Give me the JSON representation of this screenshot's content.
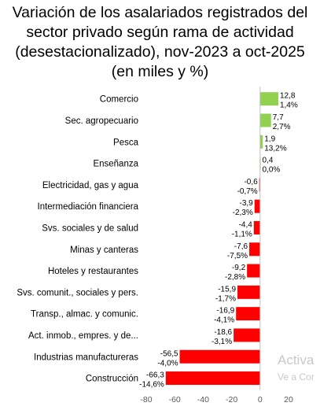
{
  "chart_data": {
    "type": "bar",
    "orientation": "horizontal",
    "title": "Variación de los asalariados registrados del sector privado según rama de actividad (desestacionalizado), nov-2023 a oct-2025 (en miles y %)",
    "title_lines": [
      "Variación de los asalariados registrados del",
      "sector privado según rama de actividad",
      "(desestacionalizado), nov-2023 a oct-2025",
      "(en miles y %)"
    ],
    "categories": [
      "Comercio",
      "Sec. agropecuario",
      "Pesca",
      "Enseñanza",
      "Electricidad, gas y agua",
      "Intermediación financiera",
      "Svs. sociales y de salud",
      "Minas y canteras",
      "Hoteles y restaurantes",
      "Svs. comunit., sociales y pers.",
      "Transp., almac. y comunic.",
      "Act. inmob., empres. y de...",
      "Industrias manufactureras",
      "Construcción"
    ],
    "values": [
      12.8,
      7.7,
      1.9,
      0.4,
      -0.6,
      -3.9,
      -4.4,
      -7.6,
      -9.2,
      -15.9,
      -16.9,
      -18.6,
      -56.5,
      -66.3
    ],
    "value_labels": [
      "12,8",
      "7,7",
      "1,9",
      "0,4",
      "-0,6",
      "-3,9",
      "-4,4",
      "-7,6",
      "-9,2",
      "-15,9",
      "-16,9",
      "-18,6",
      "-56,5",
      "-66,3"
    ],
    "pct_labels": [
      "1,4%",
      "2,7%",
      "13,2%",
      "0,0%",
      "-0,7%",
      "-2,3%",
      "-1,1%",
      "-7,5%",
      "-2,8%",
      "-1,7%",
      "-4,1%",
      "-3,1%",
      "-4,0%",
      "-14,6%"
    ],
    "xlim": [
      -80,
      20
    ],
    "xticks": [
      -80,
      -60,
      -40,
      -20,
      0,
      20
    ],
    "grid": false,
    "colors": {
      "positive": "#92d050",
      "negative": "#ff0000"
    }
  },
  "watermark": {
    "line1": "Activa",
    "line2": "Ve a Cor"
  }
}
